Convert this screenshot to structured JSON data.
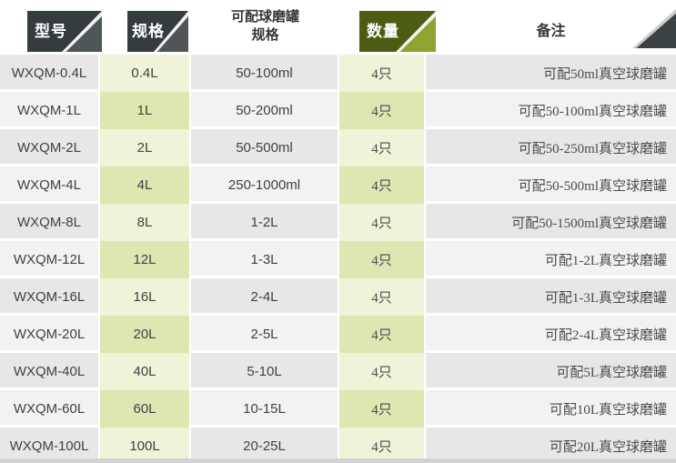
{
  "header": {
    "model": "型号",
    "spec": "规格",
    "jar_line1": "可配球磨罐",
    "jar_line2": "规格",
    "qty": "数量",
    "remark": "备注"
  },
  "rows": [
    {
      "model": "WXQM-0.4L",
      "spec": "0.4L",
      "jar": "50-100ml",
      "qty": "4只",
      "remark": "可配50ml真空球磨罐"
    },
    {
      "model": "WXQM-1L",
      "spec": "1L",
      "jar": "50-200ml",
      "qty": "4只",
      "remark": "可配50-100ml真空球磨罐"
    },
    {
      "model": "WXQM-2L",
      "spec": "2L",
      "jar": "50-500ml",
      "qty": "4只",
      "remark": "可配50-250ml真空球磨罐"
    },
    {
      "model": "WXQM-4L",
      "spec": "4L",
      "jar": "250-1000ml",
      "qty": "4只",
      "remark": "可配50-500ml真空球磨罐"
    },
    {
      "model": "WXQM-8L",
      "spec": "8L",
      "jar": "1-2L",
      "qty": "4只",
      "remark": "可配50-1500ml真空球磨罐"
    },
    {
      "model": "WXQM-12L",
      "spec": "12L",
      "jar": "1-3L",
      "qty": "4只",
      "remark": "可配1-2L真空球磨罐"
    },
    {
      "model": "WXQM-16L",
      "spec": "16L",
      "jar": "2-4L",
      "qty": "4只",
      "remark": "可配1-3L真空球磨罐"
    },
    {
      "model": "WXQM-20L",
      "spec": "20L",
      "jar": "2-5L",
      "qty": "4只",
      "remark": "可配2-4L真空球磨罐"
    },
    {
      "model": "WXQM-40L",
      "spec": "40L",
      "jar": "5-10L",
      "qty": "4只",
      "remark": "可配5L真空球磨罐"
    },
    {
      "model": "WXQM-60L",
      "spec": "60L",
      "jar": "10-15L",
      "qty": "4只",
      "remark": "可配10L真空球磨罐"
    },
    {
      "model": "WXQM-100L",
      "spec": "100L",
      "jar": "20-25L",
      "qty": "4只",
      "remark": "可配20L真空球磨罐"
    }
  ],
  "colors": {
    "tab_dark": "#353c3d",
    "tab_dark_triangle": "#4e5657",
    "tab_green": "#4d5c13",
    "tab_green_triangle": "#8ca431",
    "corner_triangle": "#3b4243",
    "row_odd_bg": "#e7e7e7",
    "row_even_bg": "#f2f2f2",
    "row_odd_green": "#eff3d8",
    "row_even_green": "#dde7b2",
    "bottom_bar": "#d2d2d2"
  }
}
